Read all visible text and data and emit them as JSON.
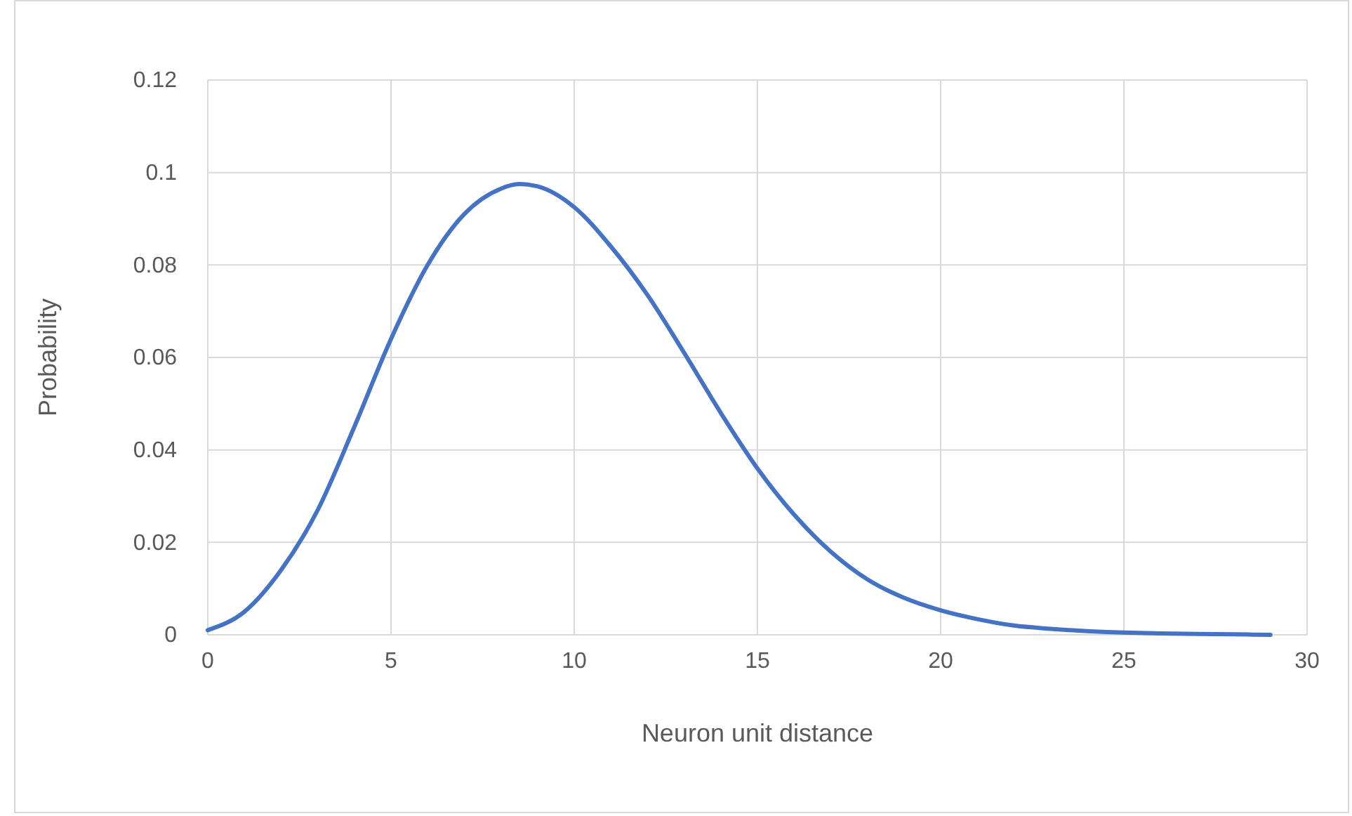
{
  "chart_data": {
    "type": "line",
    "xlabel": "Neuron unit distance",
    "ylabel": "Probability",
    "x": [
      0,
      1,
      2,
      3,
      4,
      5,
      6,
      7,
      8,
      8.5,
      9,
      10,
      11,
      12,
      13,
      14,
      15,
      16,
      17,
      18,
      19,
      20,
      21,
      22,
      23,
      24,
      25,
      26,
      27,
      28,
      29
    ],
    "series": [
      {
        "color": "#4472c4",
        "values": [
          0.001,
          0.005,
          0.014,
          0.027,
          0.045,
          0.064,
          0.08,
          0.091,
          0.0965,
          0.0975,
          0.097,
          0.0925,
          0.084,
          0.0735,
          0.061,
          0.048,
          0.036,
          0.026,
          0.018,
          0.012,
          0.008,
          0.0053,
          0.0034,
          0.002,
          0.0013,
          0.0008,
          0.0005,
          0.0003,
          0.0002,
          0.0001,
          0
        ]
      }
    ],
    "xlim": [
      0,
      30
    ],
    "xticks": [
      0,
      5,
      10,
      15,
      20,
      25,
      30
    ],
    "ylim": [
      0,
      0.12
    ],
    "yticks": [
      0,
      0.02,
      0.04,
      0.06,
      0.08,
      0.1,
      0.12
    ],
    "grid": true,
    "marker": "none",
    "line_style": "solid"
  }
}
